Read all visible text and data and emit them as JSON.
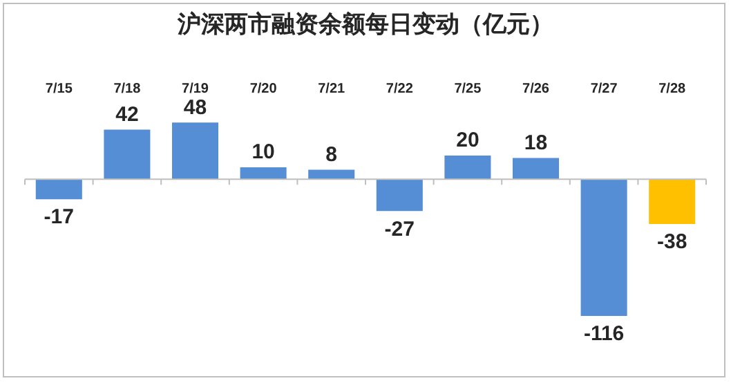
{
  "chart_data": {
    "type": "bar",
    "title": "沪深两市融资余额每日变动（亿元）",
    "categories": [
      "7/15",
      "7/18",
      "7/19",
      "7/20",
      "7/21",
      "7/22",
      "7/25",
      "7/26",
      "7/27",
      "7/28"
    ],
    "values": [
      -17,
      42,
      48,
      10,
      8,
      -27,
      20,
      18,
      -116,
      -38
    ],
    "colors": [
      "#558ed5",
      "#558ed5",
      "#558ed5",
      "#558ed5",
      "#558ed5",
      "#558ed5",
      "#558ed5",
      "#558ed5",
      "#558ed5",
      "#ffc000"
    ],
    "data_labels": true,
    "grid": false,
    "legend": false
  }
}
